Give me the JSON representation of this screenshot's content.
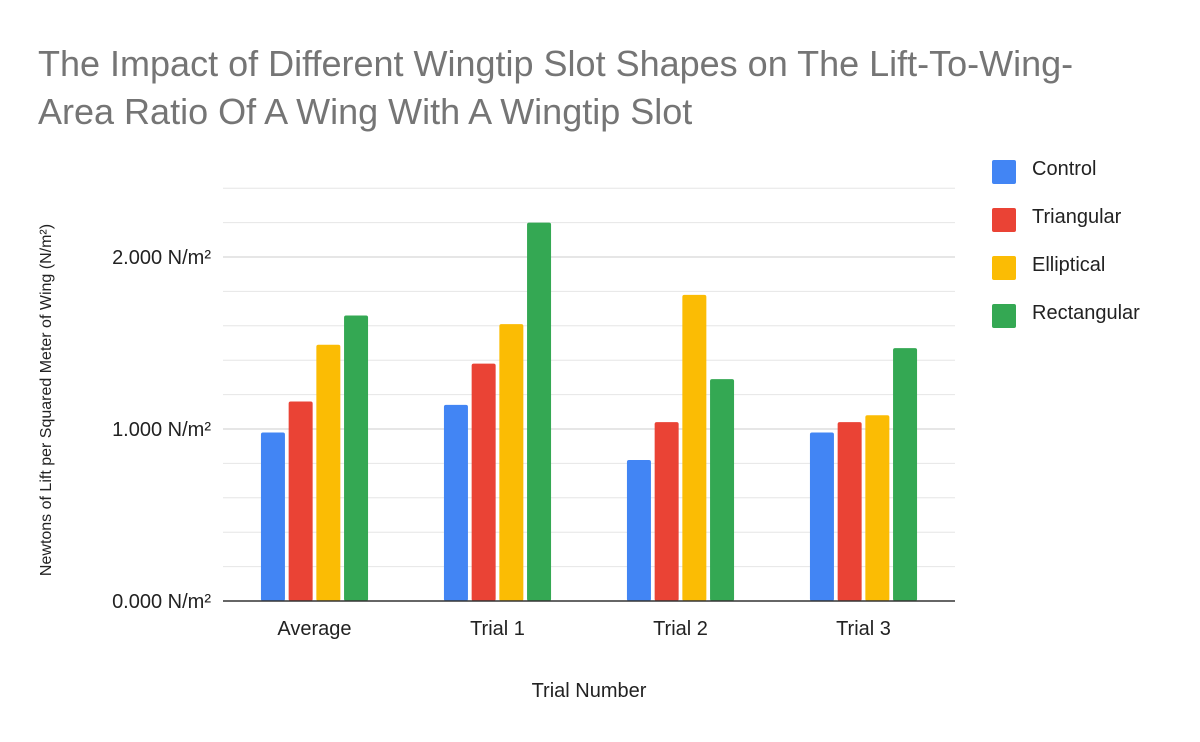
{
  "chart_data": {
    "type": "bar",
    "title": "The Impact of Different Wingtip Slot Shapes on The Lift-To-Wing-Area Ratio Of A Wing With A Wingtip Slot",
    "xlabel": "Trial Number",
    "ylabel": "Newtons of Lift per Squared Meter of Wing (N/m²)",
    "categories": [
      "Average",
      "Trial 1",
      "Trial 2",
      "Trial 3"
    ],
    "series": [
      {
        "name": "Control",
        "color": "#4285f4",
        "values": [
          0.98,
          1.14,
          0.82,
          0.98
        ]
      },
      {
        "name": "Triangular",
        "color": "#ea4335",
        "values": [
          1.16,
          1.38,
          1.04,
          1.04
        ]
      },
      {
        "name": "Elliptical",
        "color": "#fbbc04",
        "values": [
          1.49,
          1.61,
          1.78,
          1.08
        ]
      },
      {
        "name": "Rectangular",
        "color": "#34a853",
        "values": [
          1.66,
          2.2,
          1.29,
          1.47
        ]
      }
    ],
    "ylim": [
      0,
      2.4
    ],
    "y_ticks": [
      {
        "value": 0,
        "label": "0.000 N/m²"
      },
      {
        "value": 1,
        "label": "1.000 N/m²"
      },
      {
        "value": 2,
        "label": "2.000 N/m²"
      }
    ],
    "minor_gridlines": [
      0.2,
      0.4,
      0.6,
      0.8,
      1.2,
      1.4,
      1.6,
      1.8,
      2.2,
      2.4
    ],
    "grid": true,
    "legend_position": "right"
  }
}
